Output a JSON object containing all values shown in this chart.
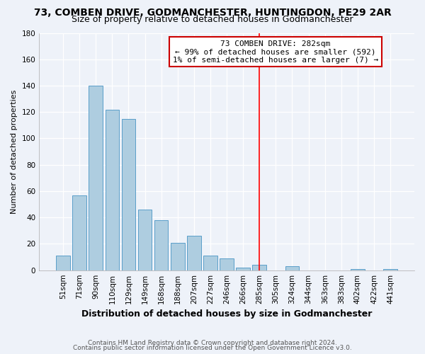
{
  "title": "73, COMBEN DRIVE, GODMANCHESTER, HUNTINGDON, PE29 2AR",
  "subtitle": "Size of property relative to detached houses in Godmanchester",
  "xlabel": "Distribution of detached houses by size in Godmanchester",
  "ylabel": "Number of detached properties",
  "bar_labels": [
    "51sqm",
    "71sqm",
    "90sqm",
    "110sqm",
    "129sqm",
    "149sqm",
    "168sqm",
    "188sqm",
    "207sqm",
    "227sqm",
    "246sqm",
    "266sqm",
    "285sqm",
    "305sqm",
    "324sqm",
    "344sqm",
    "363sqm",
    "383sqm",
    "402sqm",
    "422sqm",
    "441sqm"
  ],
  "bar_heights": [
    11,
    57,
    140,
    122,
    115,
    46,
    38,
    21,
    26,
    11,
    9,
    2,
    4,
    0,
    3,
    0,
    0,
    0,
    1,
    0,
    1
  ],
  "bar_color": "#aecde0",
  "bar_edge_color": "#5a9ec9",
  "ylim": [
    0,
    180
  ],
  "yticks": [
    0,
    20,
    40,
    60,
    80,
    100,
    120,
    140,
    160,
    180
  ],
  "vline_x_index": 12,
  "vline_color": "#ff0000",
  "annotation_title": "73 COMBEN DRIVE: 282sqm",
  "annotation_line1": "← 99% of detached houses are smaller (592)",
  "annotation_line2": "1% of semi-detached houses are larger (7) →",
  "footer1": "Contains HM Land Registry data © Crown copyright and database right 2024.",
  "footer2": "Contains public sector information licensed under the Open Government Licence v3.0.",
  "background_color": "#eef2f9",
  "grid_color": "#d0d8e8",
  "title_fontsize": 10,
  "subtitle_fontsize": 9,
  "ylabel_fontsize": 8,
  "xlabel_fontsize": 9,
  "tick_fontsize": 7.5,
  "footer_fontsize": 6.5,
  "ann_fontsize": 8
}
